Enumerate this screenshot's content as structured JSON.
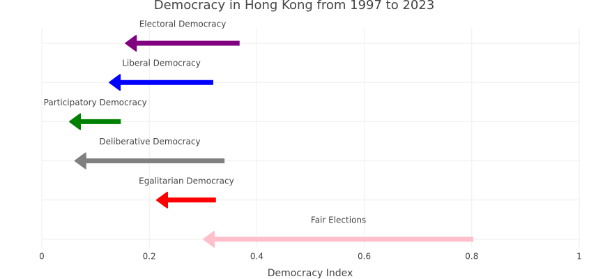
{
  "chart_data": {
    "type": "arrow",
    "title": "Democracy in Hong Kong from 1997 to 2023",
    "x_label": "Democracy Index",
    "categories": [
      "Electoral Democracy",
      "Liberal Democracy",
      "Participatory Democracy",
      "Deliberative Democracy",
      "Egalitarian Democracy",
      "Fair Elections"
    ],
    "start": [
      0.368,
      0.319,
      0.147,
      0.34,
      0.324,
      0.803
    ],
    "end": [
      0.156,
      0.126,
      0.052,
      0.062,
      0.214,
      0.301
    ],
    "colors": [
      "#800080",
      "#0000ff",
      "#008000",
      "#808080",
      "#ff0000",
      "#ffc0cb"
    ],
    "xlim": [
      0,
      1
    ],
    "xticks": [
      0,
      0.2,
      0.4,
      0.6,
      0.8,
      1
    ],
    "grid": true
  }
}
